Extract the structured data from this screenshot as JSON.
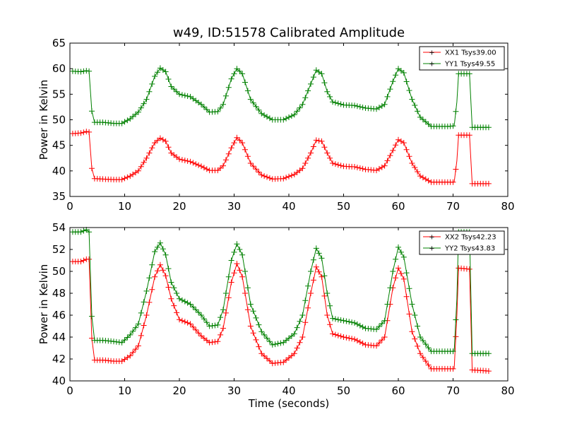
{
  "chart_data": [
    {
      "type": "line",
      "title": "w49, ID:51578 Calibrated Amplitude",
      "xlabel": "",
      "ylabel": "Power in Kelvin",
      "xlim": [
        0,
        80
      ],
      "ylim": [
        35,
        65
      ],
      "x_ticks": [
        "0",
        "10",
        "20",
        "30",
        "40",
        "50",
        "60",
        "70",
        "80"
      ],
      "y_ticks": [
        "35",
        "40",
        "45",
        "50",
        "55",
        "60",
        "65"
      ],
      "grid": false,
      "legend_position": "top-right",
      "series": [
        {
          "name": "XX1 Tsys39.00",
          "color": "#ff0000",
          "points": [
            [
              0.5,
              47.3
            ],
            [
              2,
              47.4
            ],
            [
              3,
              47.7
            ],
            [
              3.5,
              47.6
            ],
            [
              4,
              40.5
            ],
            [
              4.5,
              38.5
            ],
            [
              6,
              38.4
            ],
            [
              8,
              38.3
            ],
            [
              9.5,
              38.3
            ],
            [
              11,
              39
            ],
            [
              12.5,
              40
            ],
            [
              14,
              42.5
            ],
            [
              15.5,
              45.5
            ],
            [
              16.5,
              46.4
            ],
            [
              17.5,
              45.8
            ],
            [
              18.5,
              43.5
            ],
            [
              20,
              42.3
            ],
            [
              22,
              41.8
            ],
            [
              24,
              40.9
            ],
            [
              25.5,
              40.1
            ],
            [
              27,
              40.1
            ],
            [
              28,
              41
            ],
            [
              29.5,
              44.5
            ],
            [
              30.5,
              46.5
            ],
            [
              31.5,
              45.5
            ],
            [
              33,
              41.5
            ],
            [
              35,
              39.2
            ],
            [
              37,
              38.4
            ],
            [
              39,
              38.5
            ],
            [
              41,
              39.3
            ],
            [
              42.5,
              40.5
            ],
            [
              44,
              43.5
            ],
            [
              45,
              46
            ],
            [
              46,
              45.8
            ],
            [
              47,
              43.5
            ],
            [
              48,
              41.5
            ],
            [
              50,
              40.9
            ],
            [
              52,
              40.8
            ],
            [
              54,
              40.3
            ],
            [
              56,
              40.1
            ],
            [
              57.5,
              41
            ],
            [
              59,
              44
            ],
            [
              60,
              46.1
            ],
            [
              61,
              45.5
            ],
            [
              62.5,
              41.5
            ],
            [
              64,
              39
            ],
            [
              66,
              37.8
            ],
            [
              69,
              37.8
            ],
            [
              70.2,
              37.8
            ],
            [
              70.7,
              42
            ],
            [
              71,
              47
            ],
            [
              73,
              47
            ],
            [
              73.5,
              37.5
            ],
            [
              76.5,
              37.5
            ]
          ]
        },
        {
          "name": "YY1 Tsys49.55",
          "color": "#008000",
          "points": [
            [
              0.5,
              59.5
            ],
            [
              2,
              59.4
            ],
            [
              3,
              59.6
            ],
            [
              3.5,
              59.5
            ],
            [
              4,
              51.7
            ],
            [
              4.5,
              49.5
            ],
            [
              6,
              49.5
            ],
            [
              8,
              49.3
            ],
            [
              9.5,
              49.3
            ],
            [
              11,
              50.2
            ],
            [
              12.5,
              51.5
            ],
            [
              14,
              54
            ],
            [
              15.5,
              58.5
            ],
            [
              16.5,
              60.1
            ],
            [
              17.5,
              59.4
            ],
            [
              18.5,
              56.5
            ],
            [
              20,
              55
            ],
            [
              22,
              54.5
            ],
            [
              24,
              53
            ],
            [
              25.5,
              51.5
            ],
            [
              27,
              51.6
            ],
            [
              28,
              53
            ],
            [
              29.5,
              58
            ],
            [
              30.5,
              60
            ],
            [
              31.5,
              59
            ],
            [
              33,
              54
            ],
            [
              35,
              51.2
            ],
            [
              37,
              50
            ],
            [
              39,
              50
            ],
            [
              41,
              51
            ],
            [
              42.5,
              53
            ],
            [
              44,
              57
            ],
            [
              45,
              59.7
            ],
            [
              46,
              59
            ],
            [
              47,
              55.5
            ],
            [
              48,
              53.5
            ],
            [
              50,
              52.9
            ],
            [
              52,
              52.8
            ],
            [
              54,
              52.3
            ],
            [
              56,
              52.1
            ],
            [
              57.5,
              53
            ],
            [
              59,
              57.5
            ],
            [
              60,
              60
            ],
            [
              61,
              59.2
            ],
            [
              62.5,
              54
            ],
            [
              64,
              50.5
            ],
            [
              66,
              48.7
            ],
            [
              69,
              48.7
            ],
            [
              70.2,
              48.8
            ],
            [
              70.7,
              53.5
            ],
            [
              71,
              59
            ],
            [
              73,
              59
            ],
            [
              73.5,
              48.5
            ],
            [
              76.5,
              48.5
            ]
          ]
        }
      ]
    },
    {
      "type": "line",
      "title": "",
      "xlabel": "Time (seconds)",
      "ylabel": "Power in Kelvin",
      "xlim": [
        0,
        80
      ],
      "ylim": [
        40,
        54
      ],
      "x_ticks": [
        "0",
        "10",
        "20",
        "30",
        "40",
        "50",
        "60",
        "70",
        "80"
      ],
      "y_ticks": [
        "40",
        "42",
        "44",
        "46",
        "48",
        "50",
        "52",
        "54"
      ],
      "grid": false,
      "legend_position": "top-right",
      "series": [
        {
          "name": "XX2 Tsys42.23",
          "color": "#ff0000",
          "points": [
            [
              0.5,
              50.9
            ],
            [
              2,
              50.9
            ],
            [
              3,
              51.1
            ],
            [
              3.5,
              51.1
            ],
            [
              4,
              43.9
            ],
            [
              4.5,
              41.9
            ],
            [
              6,
              41.9
            ],
            [
              8,
              41.8
            ],
            [
              9.5,
              41.8
            ],
            [
              11,
              42.3
            ],
            [
              12.5,
              43.2
            ],
            [
              14,
              46
            ],
            [
              15.5,
              49.5
            ],
            [
              16.5,
              50.6
            ],
            [
              17.5,
              49.6
            ],
            [
              18.5,
              47.5
            ],
            [
              20,
              45.6
            ],
            [
              22,
              45.2
            ],
            [
              24,
              44.1
            ],
            [
              25.5,
              43.5
            ],
            [
              27,
              43.6
            ],
            [
              28,
              44.8
            ],
            [
              29.5,
              49
            ],
            [
              30.5,
              50.7
            ],
            [
              31.5,
              49.5
            ],
            [
              33,
              45
            ],
            [
              35,
              42.5
            ],
            [
              37,
              41.6
            ],
            [
              39,
              41.7
            ],
            [
              41,
              42.5
            ],
            [
              42.5,
              44
            ],
            [
              44,
              48
            ],
            [
              45,
              50.4
            ],
            [
              46,
              49.5
            ],
            [
              47,
              46
            ],
            [
              48,
              44.3
            ],
            [
              50,
              44
            ],
            [
              52,
              43.8
            ],
            [
              54,
              43.3
            ],
            [
              56,
              43.2
            ],
            [
              57.5,
              44
            ],
            [
              59,
              48.5
            ],
            [
              60,
              50.3
            ],
            [
              61,
              49.3
            ],
            [
              62.5,
              44.5
            ],
            [
              64,
              42.5
            ],
            [
              66,
              41.1
            ],
            [
              69,
              41.1
            ],
            [
              70.2,
              41.1
            ],
            [
              70.7,
              46
            ],
            [
              71,
              50.3
            ],
            [
              73,
              50.2
            ],
            [
              73.5,
              41
            ],
            [
              76.5,
              40.9
            ]
          ]
        },
        {
          "name": "YY2 Tsys43.83",
          "color": "#008000",
          "points": [
            [
              0.5,
              53.6
            ],
            [
              2,
              53.6
            ],
            [
              3,
              53.8
            ],
            [
              3.5,
              53.6
            ],
            [
              4,
              45.9
            ],
            [
              4.5,
              43.7
            ],
            [
              6,
              43.7
            ],
            [
              8,
              43.6
            ],
            [
              9.5,
              43.5
            ],
            [
              11,
              44.2
            ],
            [
              12.5,
              45.2
            ],
            [
              14,
              48.2
            ],
            [
              15.5,
              51.8
            ],
            [
              16.5,
              52.6
            ],
            [
              17.5,
              51.5
            ],
            [
              18.5,
              49
            ],
            [
              20,
              47.5
            ],
            [
              22,
              47
            ],
            [
              24,
              46
            ],
            [
              25.5,
              45
            ],
            [
              27,
              45.1
            ],
            [
              28,
              46.5
            ],
            [
              29.5,
              51
            ],
            [
              30.5,
              52.5
            ],
            [
              31.5,
              51.5
            ],
            [
              33,
              47
            ],
            [
              35,
              44.5
            ],
            [
              37,
              43.3
            ],
            [
              39,
              43.5
            ],
            [
              41,
              44.3
            ],
            [
              42.5,
              46
            ],
            [
              44,
              50
            ],
            [
              45,
              52.1
            ],
            [
              46,
              51.2
            ],
            [
              47,
              48
            ],
            [
              48,
              45.7
            ],
            [
              50,
              45.5
            ],
            [
              52,
              45.3
            ],
            [
              54,
              44.8
            ],
            [
              56,
              44.7
            ],
            [
              57.5,
              45.5
            ],
            [
              59,
              50
            ],
            [
              60,
              52.2
            ],
            [
              61,
              51.3
            ],
            [
              62.5,
              47
            ],
            [
              64,
              44
            ],
            [
              66,
              42.7
            ],
            [
              69,
              42.7
            ],
            [
              70.2,
              42.7
            ],
            [
              70.7,
              47.5
            ],
            [
              71,
              53.6
            ],
            [
              73,
              53.6
            ],
            [
              73.5,
              42.5
            ],
            [
              76.5,
              42.5
            ]
          ]
        }
      ]
    }
  ]
}
